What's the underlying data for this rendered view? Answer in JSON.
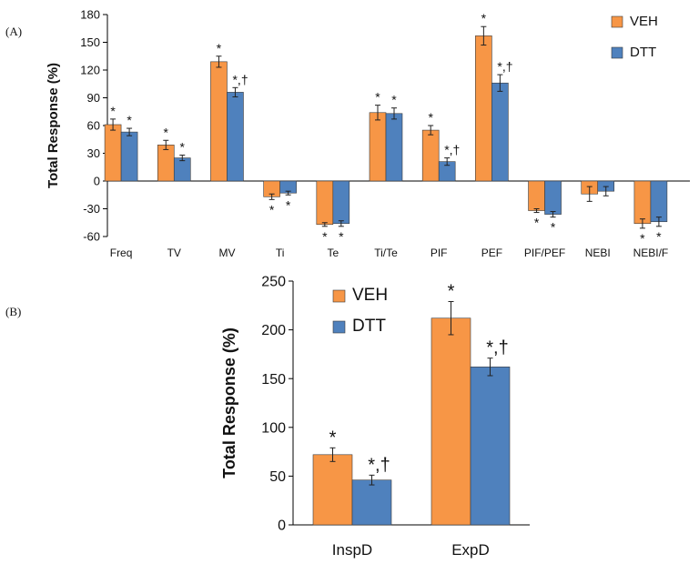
{
  "colors": {
    "veh": "#F79646",
    "dtt": "#4F81BD",
    "edge": "#3a3a3a"
  },
  "chart_data": [
    {
      "id": "A",
      "panel_label": "(A)",
      "type": "bar",
      "ylabel": "Total Response (%)",
      "ylim": [
        -60,
        180
      ],
      "yticks": [
        -60,
        -30,
        0,
        30,
        60,
        90,
        120,
        150,
        180
      ],
      "categories": [
        "Freq",
        "TV",
        "MV",
        "Ti",
        "Te",
        "Ti/Te",
        "PIF",
        "PEF",
        "PIF/PEF",
        "NEBI",
        "NEBI/F"
      ],
      "legend": [
        "VEH",
        "DTT"
      ],
      "legend_position": "top-right",
      "series": [
        {
          "name": "VEH",
          "values": [
            61,
            39,
            129,
            -17,
            -47,
            74,
            55,
            157,
            -32,
            -14,
            -46
          ],
          "errors": [
            6,
            5,
            6,
            3,
            2,
            8,
            5,
            10,
            2,
            8,
            5
          ],
          "marks": [
            "*",
            "*",
            "*",
            "*",
            "*",
            "*",
            "*",
            "*",
            "*",
            "",
            "*"
          ]
        },
        {
          "name": "DTT",
          "values": [
            53,
            25,
            96,
            -13,
            -46,
            73,
            21,
            106,
            -36,
            -11,
            -44
          ],
          "errors": [
            4,
            3,
            5,
            2,
            3,
            6,
            4,
            9,
            3,
            5,
            5
          ],
          "marks": [
            "*",
            "*",
            "*,†",
            "*",
            "*",
            "*",
            "*,†",
            "*,†",
            "*",
            "",
            "*"
          ]
        }
      ]
    },
    {
      "id": "B",
      "panel_label": "(B)",
      "type": "bar",
      "ylabel": "Total Response (%)",
      "ylim": [
        0,
        250
      ],
      "yticks": [
        0,
        50,
        100,
        150,
        200,
        250
      ],
      "categories": [
        "InspD",
        "ExpD"
      ],
      "legend": [
        "VEH",
        "DTT"
      ],
      "legend_position": "top-left",
      "series": [
        {
          "name": "VEH",
          "values": [
            72,
            212
          ],
          "errors": [
            7,
            17
          ],
          "marks": [
            "*",
            "*"
          ]
        },
        {
          "name": "DTT",
          "values": [
            46,
            162
          ],
          "errors": [
            5,
            9
          ],
          "marks": [
            "*,†",
            "*,†"
          ]
        }
      ]
    }
  ]
}
